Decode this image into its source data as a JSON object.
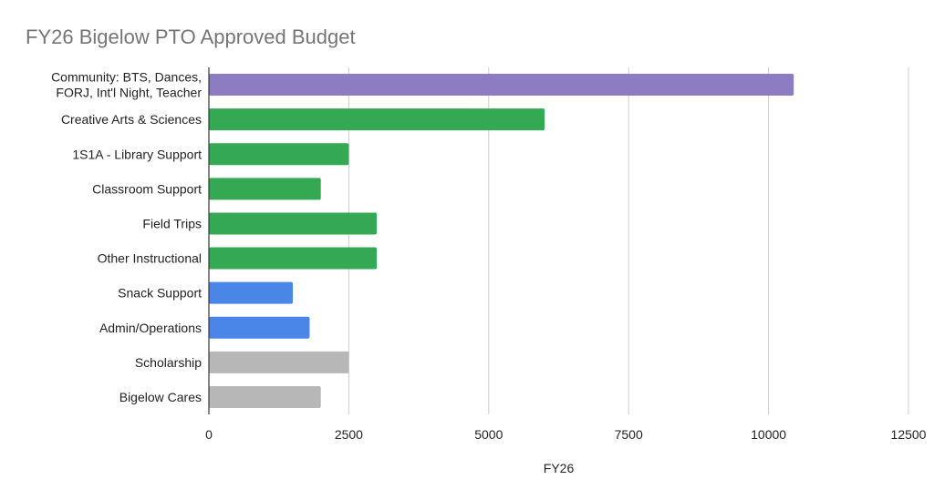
{
  "chart_data": {
    "type": "bar",
    "orientation": "horizontal",
    "title": "FY26 Bigelow PTO Approved Budget",
    "xlabel": "FY26",
    "ylabel": "",
    "xlim": [
      0,
      12500
    ],
    "ticks": [
      "0",
      "2500",
      "5000",
      "7500",
      "10000",
      "12500"
    ],
    "tick_values": [
      0,
      2500,
      5000,
      7500,
      10000,
      12500
    ],
    "grid": true,
    "legend": "none",
    "categories": [
      [
        "Community: BTS, Dances,",
        "FORJ, Int'l Night, Teacher"
      ],
      [
        "Creative Arts & Sciences"
      ],
      [
        "1S1A - Library Support"
      ],
      [
        "Classroom Support"
      ],
      [
        "Field Trips"
      ],
      [
        "Other Instructional"
      ],
      [
        "Snack Support"
      ],
      [
        "Admin/Operations"
      ],
      [
        "Scholarship"
      ],
      [
        "Bigelow Cares"
      ]
    ],
    "values": [
      10450,
      6000,
      2500,
      2000,
      3000,
      3000,
      1500,
      1800,
      2500,
      2000
    ],
    "colors": [
      "#8e7cc3",
      "#34a853",
      "#34a853",
      "#34a853",
      "#34a853",
      "#34a853",
      "#4a86e8",
      "#4a86e8",
      "#b7b7b7",
      "#b7b7b7"
    ]
  }
}
